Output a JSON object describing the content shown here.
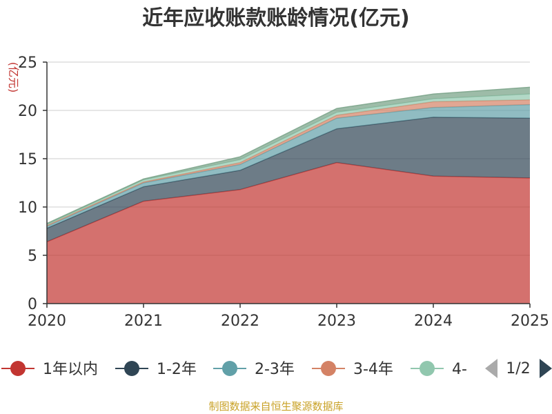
{
  "chart_data": {
    "type": "area",
    "stacked": true,
    "title": "近年应收账款账龄情况(亿元)",
    "ylabel": "(亿元)",
    "xlabel": "",
    "categories": [
      "2020",
      "2021",
      "2022",
      "2023",
      "2024",
      "2025"
    ],
    "ylim": [
      0,
      25
    ],
    "yticks": [
      "0",
      "5",
      "10",
      "15",
      "20",
      "25"
    ],
    "grid": true,
    "series": [
      {
        "name": "1年以内",
        "color": "#c23531",
        "values": [
          6.4,
          10.6,
          11.8,
          14.6,
          13.2,
          13.0
        ]
      },
      {
        "name": "1-2年",
        "color": "#2f4554",
        "values": [
          1.4,
          1.5,
          2.0,
          3.5,
          6.1,
          6.2
        ]
      },
      {
        "name": "2-3年",
        "color": "#61a0a8",
        "values": [
          0.2,
          0.4,
          0.6,
          1.1,
          1.0,
          1.4
        ]
      },
      {
        "name": "3-4年",
        "color": "#d48265",
        "values": [
          0.1,
          0.1,
          0.2,
          0.3,
          0.6,
          0.5
        ]
      },
      {
        "name": "4-",
        "color": "#91c7ae",
        "values": [
          0.1,
          0.2,
          0.3,
          0.3,
          0.3,
          0.6
        ]
      },
      {
        "name": "",
        "color": "#749f83",
        "values": [
          0.1,
          0.1,
          0.3,
          0.4,
          0.5,
          0.7
        ]
      }
    ],
    "legend_page": "1/2",
    "source": "制图数据来自恒生聚源数据库"
  }
}
